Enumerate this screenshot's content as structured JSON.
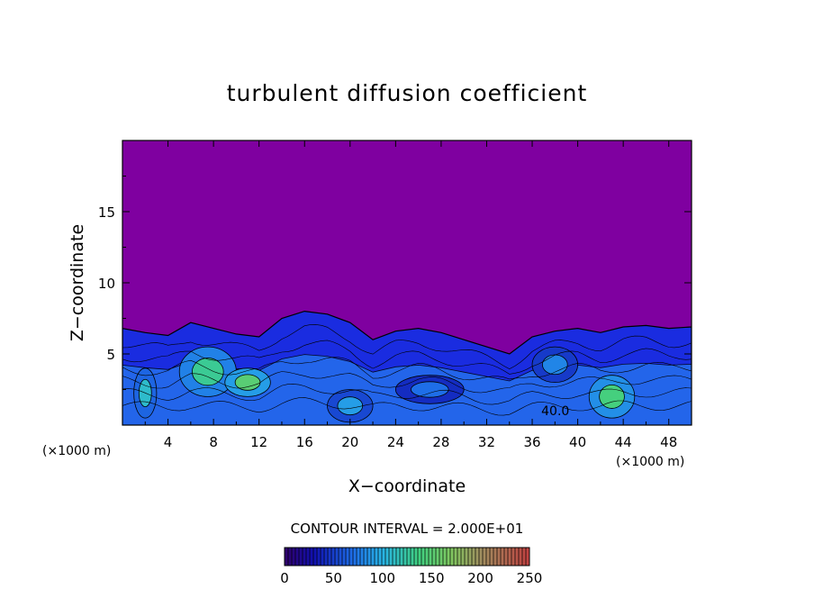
{
  "chart_data": {
    "type": "heatmap",
    "title": "turbulent diffusion coefficient",
    "xlabel": "X−coordinate",
    "ylabel": "Z−coordinate",
    "x_unit_left": "(×1000 m)",
    "x_unit_right": "(×1000 m)",
    "xlim": [
      0,
      50
    ],
    "ylim": [
      0,
      20
    ],
    "x_ticks": [
      4,
      8,
      12,
      16,
      20,
      24,
      28,
      32,
      36,
      40,
      44,
      48
    ],
    "y_ticks": [
      5,
      10,
      15
    ],
    "contour_interval_text": "CONTOUR INTERVAL = 2.000E+01",
    "contour_label": "40.0",
    "contour_label_position": [
      36.8,
      1.0
    ],
    "colorbar": {
      "min": 0,
      "max": 250,
      "ticks": [
        0,
        50,
        100,
        150,
        200,
        250
      ]
    },
    "background_color": "#7f00a0",
    "boundary_layer_top": [
      [
        0,
        6.8
      ],
      [
        2,
        6.5
      ],
      [
        4,
        6.3
      ],
      [
        6,
        7.2
      ],
      [
        8,
        6.8
      ],
      [
        10,
        6.4
      ],
      [
        12,
        6.2
      ],
      [
        14,
        7.5
      ],
      [
        16,
        8.0
      ],
      [
        18,
        7.8
      ],
      [
        20,
        7.2
      ],
      [
        22,
        6.0
      ],
      [
        24,
        6.6
      ],
      [
        26,
        6.8
      ],
      [
        28,
        6.5
      ],
      [
        30,
        6.0
      ],
      [
        32,
        5.5
      ],
      [
        34,
        5.0
      ],
      [
        36,
        6.2
      ],
      [
        38,
        6.6
      ],
      [
        40,
        6.8
      ],
      [
        42,
        6.5
      ],
      [
        44,
        6.9
      ],
      [
        46,
        7.0
      ],
      [
        48,
        6.8
      ],
      [
        50,
        6.9
      ]
    ],
    "high_value_regions": [
      {
        "x": [
          5,
          10
        ],
        "z": [
          2.0,
          5.5
        ],
        "value": 130
      },
      {
        "x": [
          9,
          13
        ],
        "z": [
          2.0,
          4.0
        ],
        "value": 150
      },
      {
        "x": [
          1,
          3
        ],
        "z": [
          0.5,
          4.0
        ],
        "value": 110
      },
      {
        "x": [
          18,
          22
        ],
        "z": [
          0.2,
          2.5
        ],
        "value": 90
      },
      {
        "x": [
          41,
          45
        ],
        "z": [
          0.5,
          3.5
        ],
        "value": 140
      },
      {
        "x": [
          36,
          40
        ],
        "z": [
          3.0,
          5.5
        ],
        "value": 80
      },
      {
        "x": [
          24,
          30
        ],
        "z": [
          1.5,
          3.5
        ],
        "value": 70
      }
    ]
  }
}
